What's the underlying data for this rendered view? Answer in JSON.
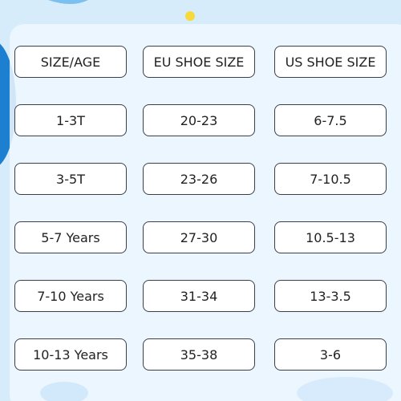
{
  "table": {
    "header": [
      "SIZE/AGE",
      "EU SHOE SIZE",
      "US SHOE SIZE"
    ],
    "rows": [
      [
        "1-3T",
        "20-23",
        "6-7.5"
      ],
      [
        "3-5T",
        "23-26",
        "7-10.5"
      ],
      [
        "5-7 Years",
        "27-30",
        "10.5-13"
      ],
      [
        "7-10 Years",
        "31-34",
        "13-3.5"
      ],
      [
        "10-13 Years",
        "35-38",
        "3-6"
      ]
    ]
  }
}
